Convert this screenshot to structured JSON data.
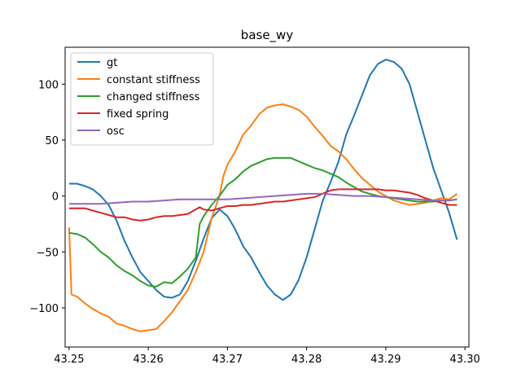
{
  "chart_data": {
    "type": "line",
    "title": "base_wy",
    "xlabel": "",
    "ylabel": "",
    "xlim": [
      43.2495,
      43.3005
    ],
    "ylim": [
      -135,
      133
    ],
    "grid": false,
    "legend_position": "top-left",
    "xticks": [
      {
        "value": 43.25,
        "label": "43.25"
      },
      {
        "value": 43.26,
        "label": "43.26"
      },
      {
        "value": 43.27,
        "label": "43.27"
      },
      {
        "value": 43.28,
        "label": "43.28"
      },
      {
        "value": 43.29,
        "label": "43.29"
      },
      {
        "value": 43.3,
        "label": "43.30"
      }
    ],
    "yticks": [
      {
        "value": -100,
        "label": "−100"
      },
      {
        "value": -50,
        "label": "−50"
      },
      {
        "value": 0,
        "label": "0"
      },
      {
        "value": 50,
        "label": "50"
      },
      {
        "value": 100,
        "label": "100"
      }
    ],
    "series": [
      {
        "name": "gt",
        "color": "#1f77b4",
        "points": [
          [
            43.25,
            11
          ],
          [
            43.251,
            11
          ],
          [
            43.252,
            9
          ],
          [
            43.253,
            6
          ],
          [
            43.254,
            0
          ],
          [
            43.255,
            -8
          ],
          [
            43.256,
            -22
          ],
          [
            43.257,
            -40
          ],
          [
            43.258,
            -55
          ],
          [
            43.259,
            -68
          ],
          [
            43.26,
            -76
          ],
          [
            43.261,
            -84
          ],
          [
            43.262,
            -90
          ],
          [
            43.263,
            -91
          ],
          [
            43.264,
            -88
          ],
          [
            43.265,
            -76
          ],
          [
            43.266,
            -58
          ],
          [
            43.267,
            -38
          ],
          [
            43.268,
            -20
          ],
          [
            43.269,
            -12
          ],
          [
            43.27,
            -18
          ],
          [
            43.271,
            -30
          ],
          [
            43.272,
            -45
          ],
          [
            43.273,
            -55
          ],
          [
            43.274,
            -68
          ],
          [
            43.275,
            -80
          ],
          [
            43.276,
            -88
          ],
          [
            43.277,
            -93
          ],
          [
            43.278,
            -88
          ],
          [
            43.279,
            -75
          ],
          [
            43.28,
            -55
          ],
          [
            43.281,
            -30
          ],
          [
            43.282,
            -5
          ],
          [
            43.283,
            12
          ],
          [
            43.284,
            30
          ],
          [
            43.285,
            55
          ],
          [
            43.286,
            72
          ],
          [
            43.287,
            90
          ],
          [
            43.288,
            108
          ],
          [
            43.289,
            118
          ],
          [
            43.29,
            122
          ],
          [
            43.291,
            120
          ],
          [
            43.292,
            114
          ],
          [
            43.293,
            100
          ],
          [
            43.294,
            75
          ],
          [
            43.295,
            50
          ],
          [
            43.296,
            25
          ],
          [
            43.297,
            5
          ],
          [
            43.298,
            -15
          ],
          [
            43.299,
            -39
          ]
        ]
      },
      {
        "name": "constant stiffness",
        "color": "#ff7f0e",
        "points": [
          [
            43.25,
            -28
          ],
          [
            43.2503,
            -88
          ],
          [
            43.251,
            -90
          ],
          [
            43.252,
            -96
          ],
          [
            43.253,
            -101
          ],
          [
            43.254,
            -105
          ],
          [
            43.255,
            -108
          ],
          [
            43.256,
            -114
          ],
          [
            43.257,
            -116
          ],
          [
            43.258,
            -119
          ],
          [
            43.259,
            -121
          ],
          [
            43.26,
            -120
          ],
          [
            43.261,
            -119
          ],
          [
            43.262,
            -112
          ],
          [
            43.263,
            -104
          ],
          [
            43.264,
            -94
          ],
          [
            43.265,
            -84
          ],
          [
            43.266,
            -68
          ],
          [
            43.267,
            -50
          ],
          [
            43.268,
            -20
          ],
          [
            43.269,
            0
          ],
          [
            43.2695,
            18
          ],
          [
            43.27,
            28
          ],
          [
            43.271,
            40
          ],
          [
            43.272,
            55
          ],
          [
            43.273,
            63
          ],
          [
            43.274,
            73
          ],
          [
            43.275,
            79
          ],
          [
            43.276,
            81
          ],
          [
            43.277,
            82
          ],
          [
            43.278,
            80
          ],
          [
            43.279,
            77
          ],
          [
            43.28,
            71
          ],
          [
            43.281,
            62
          ],
          [
            43.282,
            54
          ],
          [
            43.283,
            45
          ],
          [
            43.284,
            40
          ],
          [
            43.285,
            33
          ],
          [
            43.286,
            24
          ],
          [
            43.287,
            16
          ],
          [
            43.288,
            10
          ],
          [
            43.289,
            4
          ],
          [
            43.29,
            0
          ],
          [
            43.291,
            -4
          ],
          [
            43.292,
            -6
          ],
          [
            43.293,
            -8
          ],
          [
            43.294,
            -7
          ],
          [
            43.295,
            -6
          ],
          [
            43.296,
            -4
          ],
          [
            43.297,
            -2
          ],
          [
            43.298,
            -3
          ],
          [
            43.299,
            2
          ]
        ]
      },
      {
        "name": "changed stiffness",
        "color": "#2ca02c",
        "points": [
          [
            43.25,
            -33
          ],
          [
            43.251,
            -34
          ],
          [
            43.252,
            -37
          ],
          [
            43.253,
            -43
          ],
          [
            43.254,
            -50
          ],
          [
            43.255,
            -55
          ],
          [
            43.256,
            -62
          ],
          [
            43.257,
            -67
          ],
          [
            43.258,
            -71
          ],
          [
            43.259,
            -76
          ],
          [
            43.26,
            -80
          ],
          [
            43.261,
            -81
          ],
          [
            43.262,
            -77
          ],
          [
            43.263,
            -78
          ],
          [
            43.264,
            -72
          ],
          [
            43.265,
            -65
          ],
          [
            43.266,
            -55
          ],
          [
            43.2665,
            -25
          ],
          [
            43.267,
            -18
          ],
          [
            43.268,
            -8
          ],
          [
            43.269,
            0
          ],
          [
            43.27,
            10
          ],
          [
            43.271,
            15
          ],
          [
            43.272,
            22
          ],
          [
            43.273,
            27
          ],
          [
            43.274,
            30
          ],
          [
            43.275,
            33
          ],
          [
            43.276,
            34
          ],
          [
            43.277,
            34
          ],
          [
            43.278,
            34
          ],
          [
            43.279,
            31
          ],
          [
            43.28,
            28
          ],
          [
            43.281,
            25
          ],
          [
            43.282,
            23
          ],
          [
            43.283,
            20
          ],
          [
            43.284,
            17
          ],
          [
            43.285,
            12
          ],
          [
            43.286,
            8
          ],
          [
            43.287,
            4
          ],
          [
            43.288,
            2
          ],
          [
            43.289,
            0
          ],
          [
            43.29,
            -1
          ],
          [
            43.291,
            -2
          ],
          [
            43.292,
            -3
          ],
          [
            43.293,
            -4
          ],
          [
            43.294,
            -5
          ],
          [
            43.295,
            -5
          ],
          [
            43.296,
            -5
          ],
          [
            43.297,
            -4
          ],
          [
            43.298,
            -4
          ],
          [
            43.299,
            -3
          ]
        ]
      },
      {
        "name": "fixed spring",
        "color": "#d62728",
        "points": [
          [
            43.25,
            -11
          ],
          [
            43.251,
            -11
          ],
          [
            43.252,
            -11
          ],
          [
            43.253,
            -13
          ],
          [
            43.254,
            -15
          ],
          [
            43.255,
            -17
          ],
          [
            43.256,
            -19
          ],
          [
            43.257,
            -19
          ],
          [
            43.258,
            -21
          ],
          [
            43.259,
            -22
          ],
          [
            43.26,
            -21
          ],
          [
            43.261,
            -19
          ],
          [
            43.262,
            -18
          ],
          [
            43.263,
            -18
          ],
          [
            43.264,
            -17
          ],
          [
            43.265,
            -16
          ],
          [
            43.266,
            -12
          ],
          [
            43.2665,
            -10
          ],
          [
            43.267,
            -12
          ],
          [
            43.268,
            -13
          ],
          [
            43.269,
            -11
          ],
          [
            43.27,
            -9
          ],
          [
            43.271,
            -9
          ],
          [
            43.272,
            -8
          ],
          [
            43.273,
            -8
          ],
          [
            43.274,
            -7
          ],
          [
            43.275,
            -6
          ],
          [
            43.276,
            -5
          ],
          [
            43.277,
            -5
          ],
          [
            43.278,
            -4
          ],
          [
            43.279,
            -3
          ],
          [
            43.28,
            -2
          ],
          [
            43.281,
            -1
          ],
          [
            43.282,
            2
          ],
          [
            43.283,
            5
          ],
          [
            43.284,
            6
          ],
          [
            43.285,
            6
          ],
          [
            43.286,
            6
          ],
          [
            43.287,
            6
          ],
          [
            43.288,
            6
          ],
          [
            43.289,
            6
          ],
          [
            43.29,
            5
          ],
          [
            43.291,
            5
          ],
          [
            43.292,
            4
          ],
          [
            43.293,
            3
          ],
          [
            43.294,
            1
          ],
          [
            43.295,
            -2
          ],
          [
            43.296,
            -4
          ],
          [
            43.297,
            -6
          ],
          [
            43.298,
            -8
          ],
          [
            43.299,
            -8
          ]
        ]
      },
      {
        "name": "osc",
        "color": "#9467bd",
        "points": [
          [
            43.25,
            -7
          ],
          [
            43.252,
            -7
          ],
          [
            43.254,
            -7
          ],
          [
            43.256,
            -6
          ],
          [
            43.258,
            -5
          ],
          [
            43.26,
            -5
          ],
          [
            43.262,
            -4
          ],
          [
            43.264,
            -3
          ],
          [
            43.266,
            -3
          ],
          [
            43.268,
            -3
          ],
          [
            43.27,
            -3
          ],
          [
            43.272,
            -2
          ],
          [
            43.274,
            -1
          ],
          [
            43.276,
            0
          ],
          [
            43.278,
            1
          ],
          [
            43.28,
            2
          ],
          [
            43.282,
            2
          ],
          [
            43.284,
            1
          ],
          [
            43.286,
            0
          ],
          [
            43.288,
            0
          ],
          [
            43.29,
            -1
          ],
          [
            43.292,
            -2
          ],
          [
            43.294,
            -3
          ],
          [
            43.296,
            -4
          ],
          [
            43.298,
            -4
          ],
          [
            43.299,
            -3
          ]
        ]
      }
    ]
  }
}
